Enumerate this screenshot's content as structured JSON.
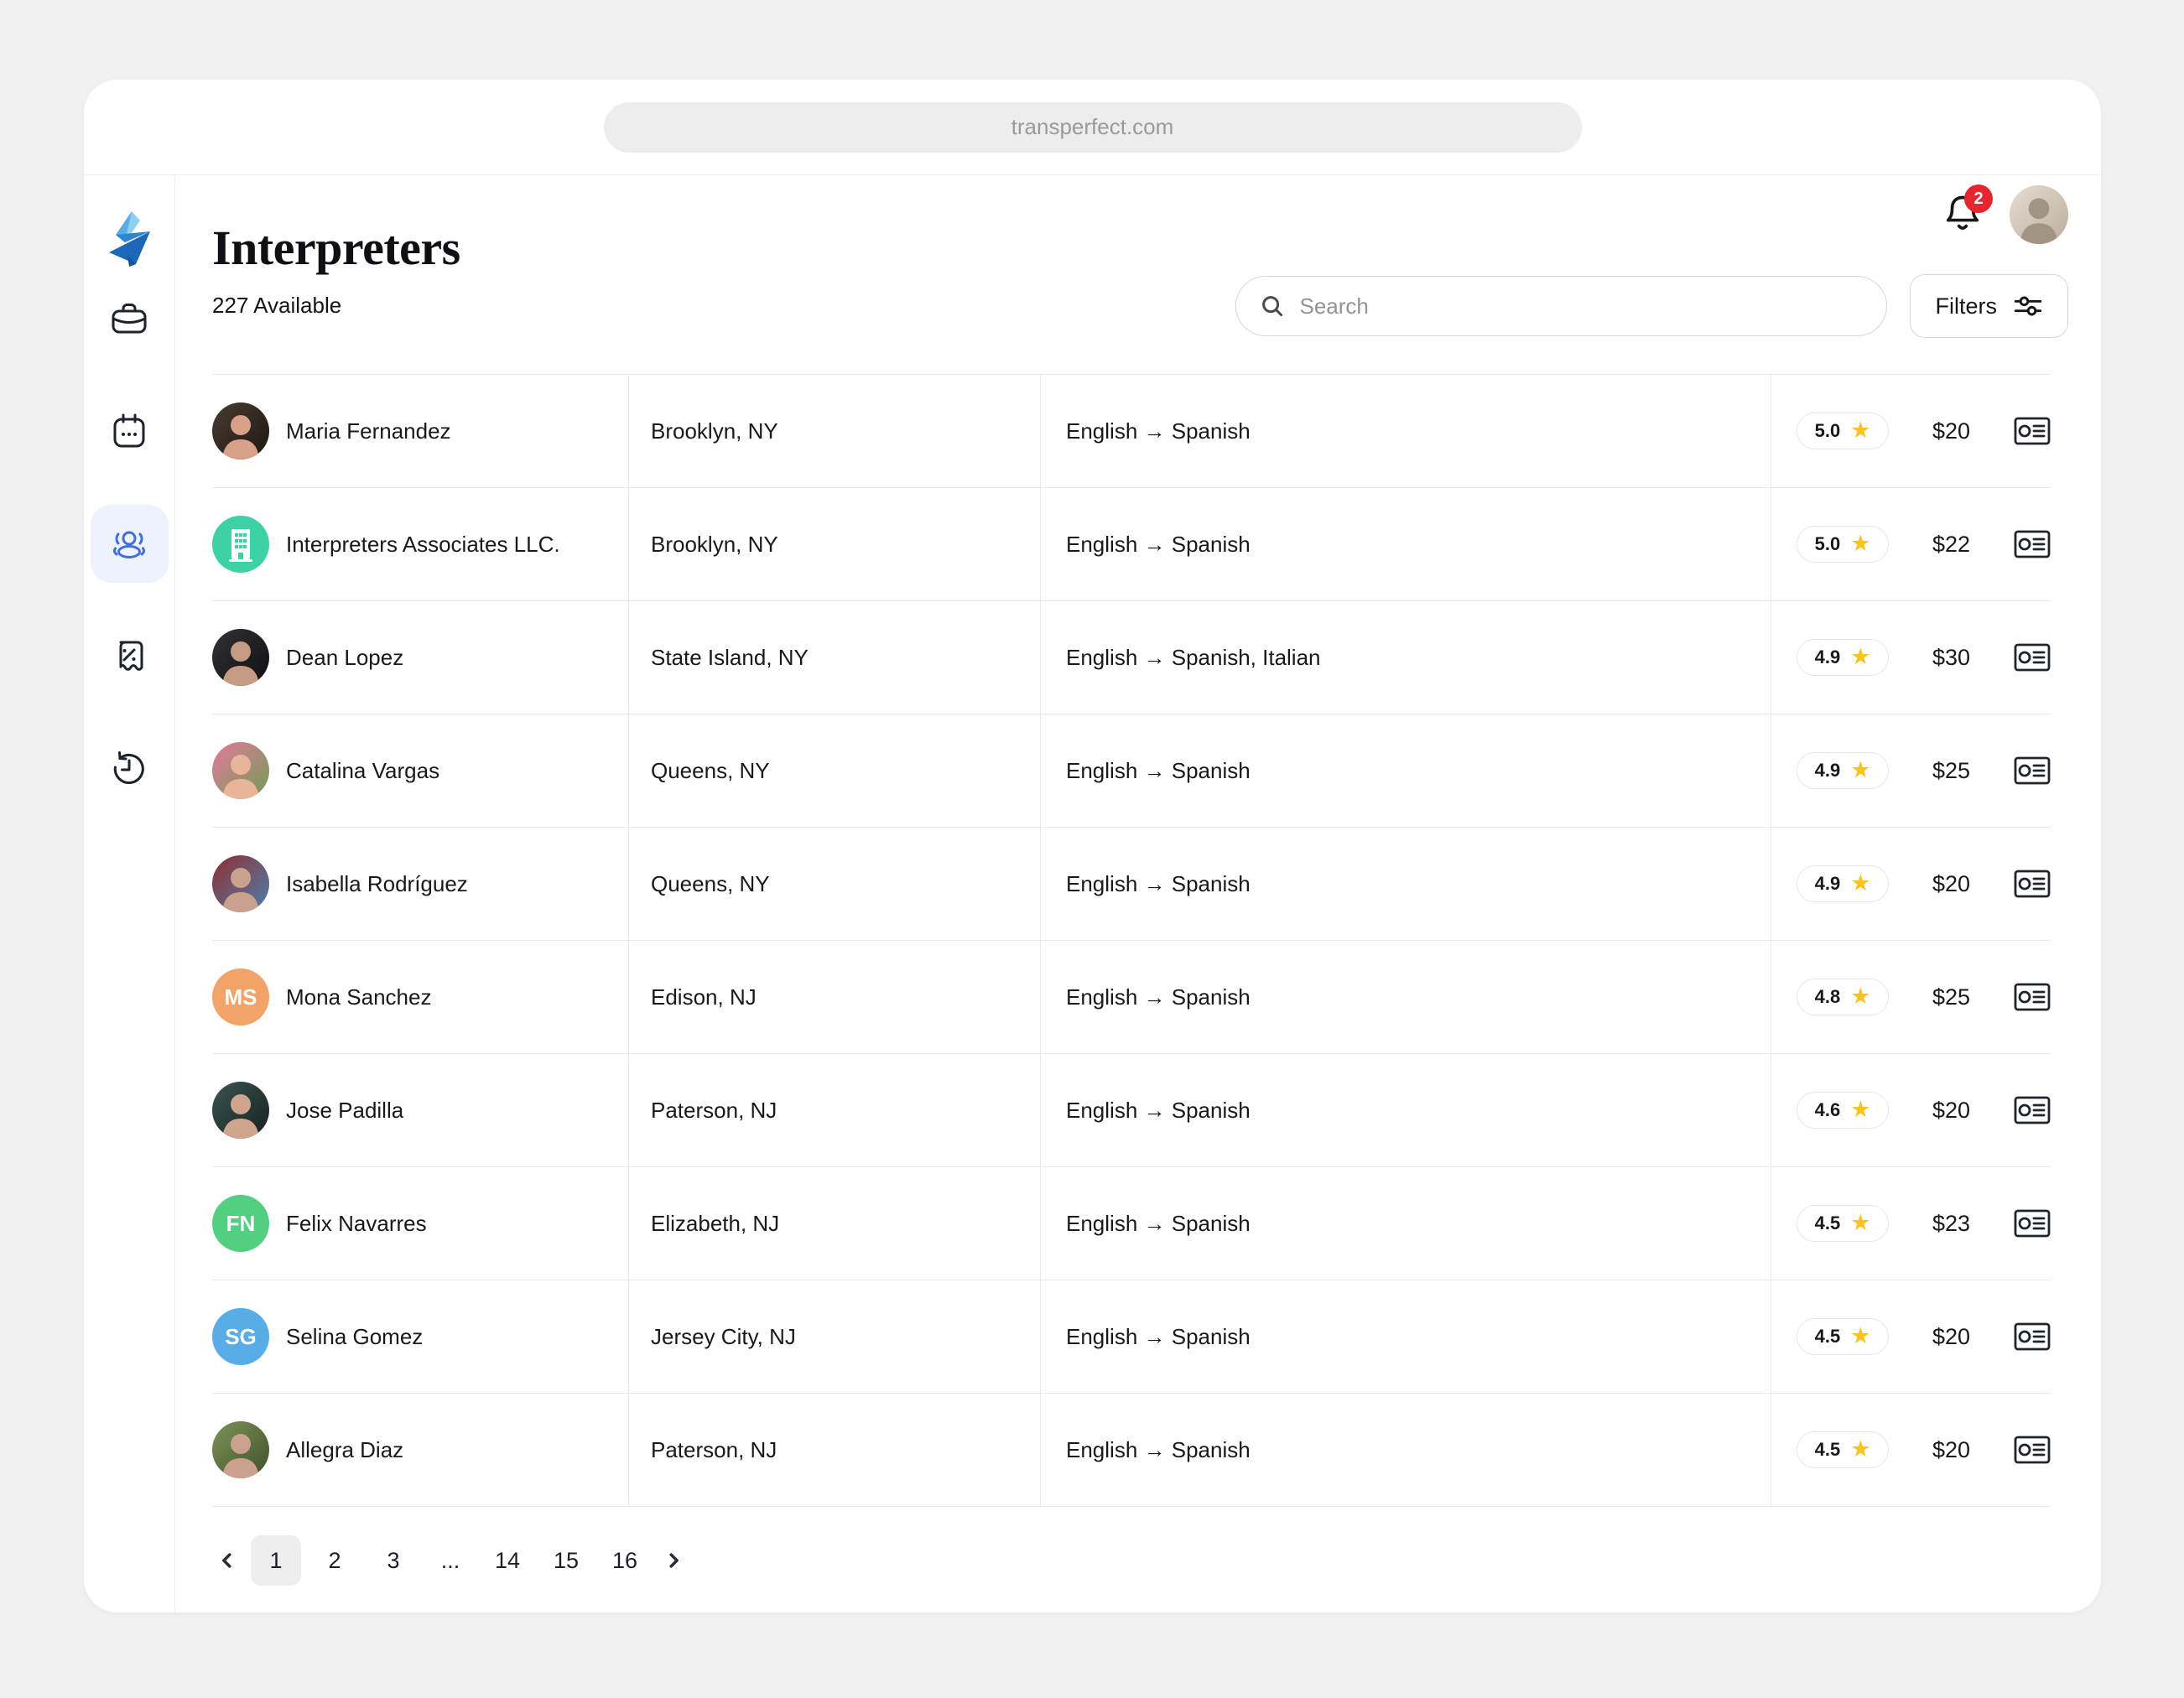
{
  "browser": {
    "url": "transperfect.com"
  },
  "header": {
    "title": "Interpreters",
    "available_count": "227 Available",
    "notification_count": "2"
  },
  "search": {
    "placeholder": "Search"
  },
  "filters": {
    "label": "Filters"
  },
  "sidebar": {
    "logo": "origami-bird-logo",
    "items": [
      {
        "icon": "briefcase-icon",
        "active": false
      },
      {
        "icon": "calendar-icon",
        "active": false
      },
      {
        "icon": "users-icon",
        "active": true
      },
      {
        "icon": "receipt-percent-icon",
        "active": false
      },
      {
        "icon": "history-icon",
        "active": false
      }
    ],
    "active_color": "#4170d8",
    "active_bg": "#edf2fc"
  },
  "icons": {
    "top_right": [
      "bell-icon",
      "avatar"
    ],
    "row_action": "contact-card-icon",
    "rating": "star-icon"
  },
  "colors": {
    "star": "#fbc31c",
    "badge_red": "#e5262e",
    "avatar_teal": "#3fd1a6",
    "avatar_orange": "#f2a468",
    "avatar_green": "#52cf80",
    "avatar_blue": "#58ade6"
  },
  "table": {
    "rows": [
      {
        "name": "Maria Fernandez",
        "location": "Brooklyn, NY",
        "languages": "English → Spanish",
        "rating": "5.0",
        "price": "$20",
        "avatar": {
          "type": "photo",
          "colors": [
            "#4a3b30",
            "#1d1712",
            "#d9a08a"
          ]
        }
      },
      {
        "name": "Interpreters Associates LLC.",
        "location": "Brooklyn, NY",
        "languages": "English → Spanish",
        "rating": "5.0",
        "price": "$22",
        "avatar": {
          "type": "building",
          "color": "#3fd1a6"
        }
      },
      {
        "name": "Dean Lopez",
        "location": "State Island, NY",
        "languages": "English → Spanish, Italian",
        "rating": "4.9",
        "price": "$30",
        "avatar": {
          "type": "photo",
          "colors": [
            "#323236",
            "#101013",
            "#c79b83"
          ]
        }
      },
      {
        "name": "Catalina Vargas",
        "location": "Queens, NY",
        "languages": "English → Spanish",
        "rating": "4.9",
        "price": "$25",
        "avatar": {
          "type": "photo",
          "colors": [
            "#e4799b",
            "#6f9e55",
            "#e8b59a"
          ]
        }
      },
      {
        "name": "Isabella Rodríguez",
        "location": "Queens, NY",
        "languages": "English → Spanish",
        "rating": "4.9",
        "price": "$20",
        "avatar": {
          "type": "photo",
          "colors": [
            "#8e2f33",
            "#4d7fae",
            "#caa18c"
          ]
        }
      },
      {
        "name": "Mona Sanchez",
        "location": "Edison, NJ",
        "languages": "English → Spanish",
        "rating": "4.8",
        "price": "$25",
        "avatar": {
          "type": "initials",
          "initials": "MS",
          "color": "#f2a468"
        }
      },
      {
        "name": "Jose Padilla",
        "location": "Paterson, NJ",
        "languages": "English → Spanish",
        "rating": "4.6",
        "price": "$20",
        "avatar": {
          "type": "photo",
          "colors": [
            "#3a5553",
            "#16211f",
            "#cfa68d"
          ]
        }
      },
      {
        "name": "Felix Navarres",
        "location": "Elizabeth, NJ",
        "languages": "English → Spanish",
        "rating": "4.5",
        "price": "$23",
        "avatar": {
          "type": "initials",
          "initials": "FN",
          "color": "#52cf80"
        }
      },
      {
        "name": "Selina Gomez",
        "location": "Jersey City, NJ",
        "languages": "English → Spanish",
        "rating": "4.5",
        "price": "$20",
        "avatar": {
          "type": "initials",
          "initials": "SG",
          "color": "#58ade6"
        }
      },
      {
        "name": "Allegra Diaz",
        "location": "Paterson, NJ",
        "languages": "English → Spanish",
        "rating": "4.5",
        "price": "$20",
        "avatar": {
          "type": "photo",
          "colors": [
            "#7d9458",
            "#40502c",
            "#caa18c"
          ]
        }
      }
    ]
  },
  "pagination": {
    "pages": [
      "1",
      "2",
      "3",
      "...",
      "14",
      "15",
      "16"
    ],
    "active": "1"
  },
  "profile_avatar": {
    "type": "photo",
    "colors": [
      "#e5ddd2",
      "#bcae9d",
      "#a29482"
    ]
  }
}
